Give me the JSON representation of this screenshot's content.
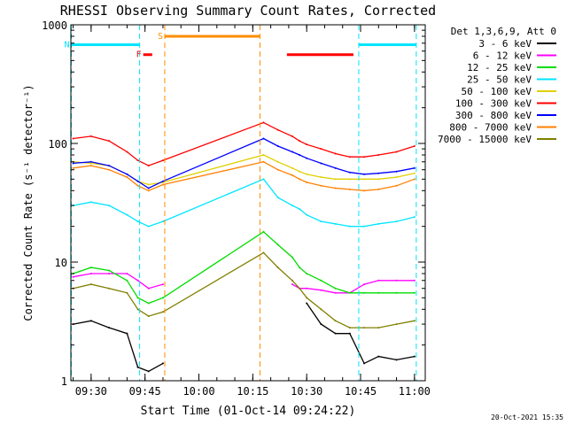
{
  "chart_data": {
    "type": "line",
    "title": "RHESSI Observing Summary Count Rates, Corrected",
    "xlabel": "Start Time (01-Oct-14 09:24:22)",
    "ylabel": "Corrected Count Rate (s⁻¹ detector⁻¹)",
    "yscale": "log",
    "ylim": [
      1,
      1000
    ],
    "xlim": [
      "09:24:22",
      "11:03:00"
    ],
    "x_ticks": [
      "09:30",
      "09:45",
      "10:00",
      "10:15",
      "10:30",
      "10:45",
      "11:00"
    ],
    "y_ticks": [
      "1",
      "10",
      "100",
      "1000"
    ],
    "legend_title": "Det 1,3,6,9, Att 0",
    "legend_position": "right",
    "footer_date": "20-Oct-2021 15:35",
    "flags": [
      {
        "label": "F",
        "color": "#ff0000",
        "start": "09:44:30",
        "end": "09:47:00",
        "level": 560
      },
      {
        "label": "N",
        "color": "#00e5ff",
        "start": "09:24:30",
        "end": "09:43:30",
        "level": 680
      },
      {
        "label": "S",
        "color": "#ff8c00",
        "start": "09:50:30",
        "end": "10:17:00",
        "level": 800
      },
      {
        "label": "",
        "color": "#ff0000",
        "start": "10:24:30",
        "end": "10:43:00",
        "level": 560
      },
      {
        "label": "",
        "color": "#00e5ff",
        "start": "10:44:30",
        "end": "11:00:30",
        "level": 680
      }
    ],
    "markers": [
      {
        "color": "#00e5ff",
        "time": "09:24:30"
      },
      {
        "color": "#00e5ff",
        "time": "09:43:30"
      },
      {
        "color": "#ff8c00",
        "time": "09:50:30"
      },
      {
        "color": "#ff8c00",
        "time": "10:17:00"
      },
      {
        "color": "#00e5ff",
        "time": "10:44:30"
      },
      {
        "color": "#00e5ff",
        "time": "11:00:30"
      }
    ],
    "x": [
      "09:25",
      "09:30",
      "09:35",
      "09:40",
      "09:43",
      "09:46",
      "09:50",
      "10:18",
      "10:22",
      "10:26",
      "10:28",
      "10:30",
      "10:34",
      "10:38",
      "10:42",
      "10:46",
      "10:50",
      "10:55",
      "11:00"
    ],
    "series": [
      {
        "name": "3 - 6 keV",
        "color": "#000000",
        "values": [
          3,
          3.2,
          2.8,
          2.5,
          1.3,
          1.2,
          1.4,
          null,
          null,
          null,
          null,
          4.5,
          3,
          2.5,
          2.5,
          1.4,
          1.6,
          1.5,
          1.6
        ]
      },
      {
        "name": "6 - 12 keV",
        "color": "#ff00ff",
        "values": [
          7.5,
          8,
          8,
          8,
          7,
          6,
          6.5,
          null,
          null,
          6.5,
          6,
          6,
          5.8,
          5.5,
          5.5,
          6.5,
          7,
          7,
          7
        ]
      },
      {
        "name": "12 - 25 keV",
        "color": "#00dd00",
        "values": [
          8,
          9,
          8.5,
          7,
          5,
          4.5,
          5,
          18,
          14,
          11,
          9,
          8,
          7,
          6,
          5.5,
          5.5,
          5.5,
          5.5,
          5.5
        ]
      },
      {
        "name": "25 - 50 keV",
        "color": "#00e5ff",
        "values": [
          30,
          32,
          30,
          25,
          22,
          20,
          22,
          50,
          35,
          30,
          28,
          25,
          22,
          21,
          20,
          20,
          21,
          22,
          24
        ]
      },
      {
        "name": "50 - 100 keV",
        "color": "#e0d000",
        "values": [
          70,
          68,
          65,
          55,
          48,
          45,
          47,
          80,
          70,
          62,
          58,
          55,
          52,
          50,
          50,
          50,
          50,
          52,
          56
        ]
      },
      {
        "name": "100 - 300 keV",
        "color": "#ff0000",
        "values": [
          110,
          115,
          105,
          85,
          72,
          65,
          72,
          150,
          130,
          115,
          105,
          98,
          90,
          82,
          77,
          77,
          80,
          85,
          95
        ]
      },
      {
        "name": "300 - 800 keV",
        "color": "#0000ff",
        "values": [
          68,
          70,
          65,
          55,
          48,
          42,
          48,
          110,
          95,
          85,
          80,
          75,
          68,
          62,
          57,
          55,
          56,
          58,
          62
        ]
      },
      {
        "name": "800 - 7000 keV",
        "color": "#ff8000",
        "values": [
          62,
          65,
          60,
          52,
          44,
          40,
          45,
          70,
          60,
          54,
          50,
          47,
          44,
          42,
          41,
          40,
          41,
          44,
          50
        ]
      },
      {
        "name": "7000 - 15000 keV",
        "color": "#808000",
        "values": [
          6,
          6.5,
          6,
          5.5,
          4,
          3.5,
          3.8,
          12,
          9,
          7,
          6,
          5,
          4,
          3.2,
          2.8,
          2.8,
          2.8,
          3,
          3.2
        ]
      }
    ]
  }
}
